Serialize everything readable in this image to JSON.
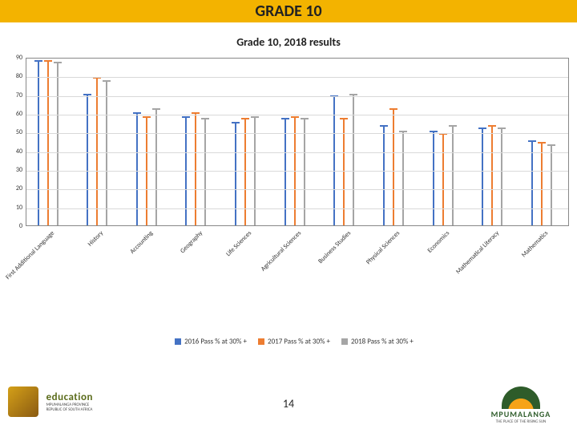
{
  "colors": {
    "yellow_bar": "#f3b300",
    "grid": "#d9d9d9",
    "series": [
      "#4472c4",
      "#ed7d31",
      "#a5a5a5"
    ]
  },
  "title": "GRADE 10",
  "subtitle": "Grade 10, 2018 results",
  "page_number": "14",
  "chart": {
    "ylim": [
      0,
      90
    ],
    "ytick_step": 10,
    "categories": [
      "First Additional Language",
      "History",
      "Accounting",
      "Geography",
      "Life Sciences",
      "Agricultural Sciences",
      "Business Studies",
      "Physical Sciences",
      "Economics",
      "Mathematical Literacy",
      "Mathematics"
    ],
    "series": [
      {
        "name": "2016 Pass % at 30% +",
        "values": [
          88,
          70,
          60,
          58,
          55,
          57,
          69,
          53,
          50,
          52,
          45
        ]
      },
      {
        "name": "2017 Pass % at 30% +",
        "values": [
          88,
          79,
          58,
          60,
          57,
          58,
          57,
          62,
          49,
          53,
          44
        ]
      },
      {
        "name": "2018 Pass % at 30% +",
        "values": [
          87,
          77,
          62,
          57,
          58,
          57,
          70,
          50,
          53,
          52,
          43
        ]
      }
    ]
  },
  "logo_left": {
    "line1": "education",
    "line2": "MPUMALANGA PROVINCE",
    "line3": "REPUBLIC OF SOUTH AFRICA"
  },
  "logo_right": {
    "line1": "MPUMALANGA",
    "line2": "THE PLACE OF THE RISING SUN"
  }
}
